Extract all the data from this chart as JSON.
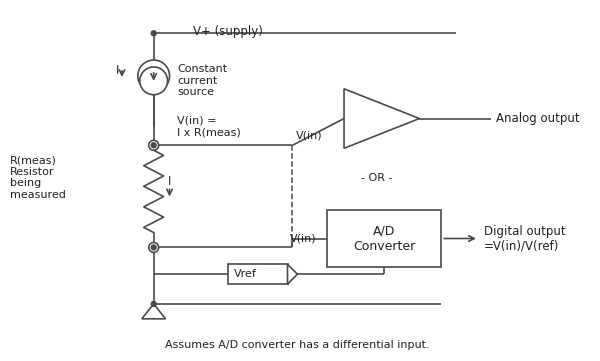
{
  "bg_color": "#ffffff",
  "line_color": "#4a4a4a",
  "text_color": "#222222",
  "fig_width": 6.0,
  "fig_height": 3.61,
  "dpi": 100,
  "title_text": "Assumes A/D converter has a differential input.",
  "supply_label": "V+ (supply)",
  "constant_current_label": "Constant\ncurrent\nsource",
  "vin_eq_label": "V(in) =\nI x R(meas)",
  "rmeas_label": "R(meas)\nResistor\nbeing\nmeasured",
  "analog_output_label": "Analog output",
  "digital_output_label": "Digital output\n=V(in)/V(ref)",
  "or_label": "- OR -",
  "ad_label": "A/D\nConverter",
  "vin_label1": "V(in)",
  "vin_label2": "V(in)",
  "vref_label": "Vref",
  "I_label1": "I",
  "I_label2": "I"
}
